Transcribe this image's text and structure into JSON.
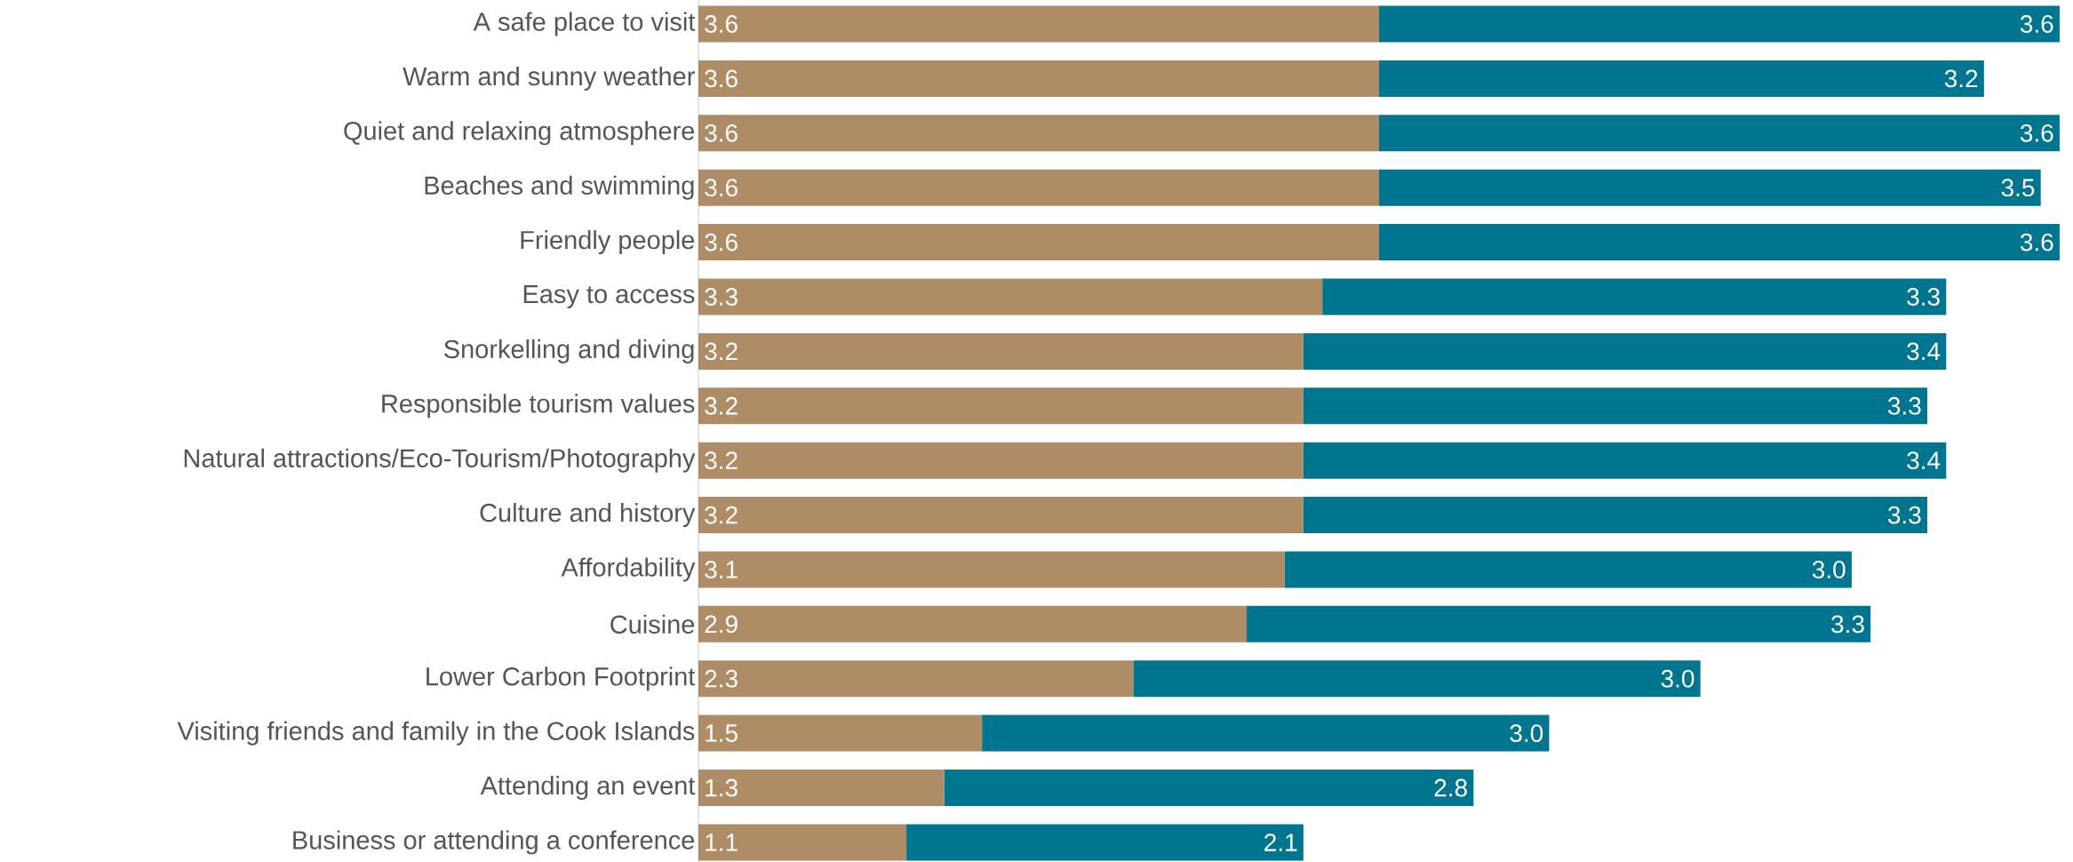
{
  "chart_data": {
    "type": "bar",
    "orientation": "horizontal",
    "stacked": true,
    "categories": [
      "A safe place to visit",
      "Warm and sunny weather",
      "Quiet and relaxing atmosphere",
      "Beaches and swimming",
      "Friendly people",
      "Easy to access",
      "Snorkelling and diving",
      "Responsible tourism values",
      "Natural attractions/Eco-Tourism/Photography",
      "Culture and history",
      "Affordability",
      "Cuisine",
      "Lower Carbon Footprint",
      "Visiting friends and family in the Cook Islands",
      "Attending an event",
      "Business or attending a conference"
    ],
    "series": [
      {
        "color": "#ad8c66",
        "values": [
          3.6,
          3.6,
          3.6,
          3.6,
          3.6,
          3.3,
          3.2,
          3.2,
          3.2,
          3.2,
          3.1,
          2.9,
          2.3,
          1.5,
          1.3,
          1.1
        ],
        "value_labels": [
          "3.6",
          "3.6",
          "3.6",
          "3.6",
          "3.6",
          "3.3",
          "3.2",
          "3.2",
          "3.2",
          "3.2",
          "3.1",
          "2.9",
          "2.3",
          "1.5",
          "1.3",
          "1.1"
        ]
      },
      {
        "color": "#007590",
        "values": [
          3.6,
          3.2,
          3.6,
          3.5,
          3.6,
          3.3,
          3.4,
          3.3,
          3.4,
          3.3,
          3.0,
          3.3,
          3.0,
          3.0,
          2.8,
          2.1
        ],
        "value_labels": [
          "3.6",
          "3.2",
          "3.6",
          "3.5",
          "3.6",
          "3.3",
          "3.4",
          "3.3",
          "3.4",
          "3.3",
          "3.0",
          "3.3",
          "3.0",
          "3.0",
          "2.8",
          "2.1"
        ]
      }
    ]
  }
}
